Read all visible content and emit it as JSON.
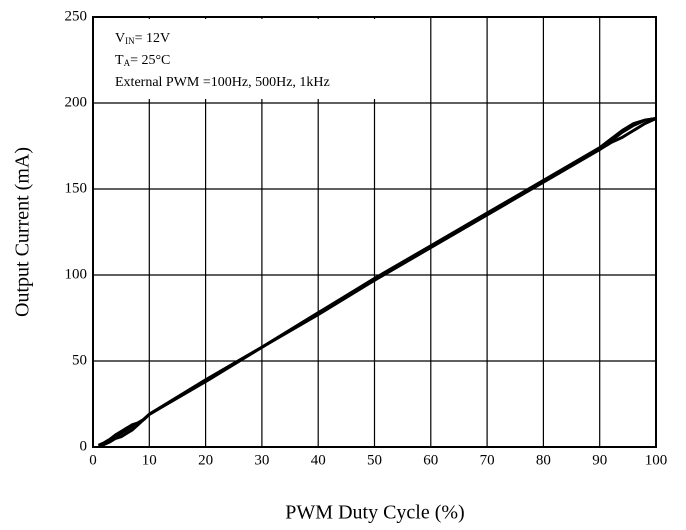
{
  "chart_data": {
    "type": "line",
    "xlabel": "PWM Duty Cycle (%)",
    "ylabel": "Output Current (mA)",
    "annotations": [
      [
        "V",
        "IN",
        "= 12V"
      ],
      [
        "T",
        "A",
        "= 25°C"
      ],
      [
        "External PWM =100Hz, 500Hz, 1kHz"
      ]
    ],
    "x": [
      1,
      2,
      3,
      4,
      5,
      6,
      7,
      8,
      9,
      10,
      20,
      30,
      40,
      50,
      60,
      70,
      80,
      90,
      92,
      94,
      96,
      98,
      100
    ],
    "series": [
      {
        "color": "#000000",
        "values": [
          0.5,
          2,
          4,
          6,
          8,
          10,
          12,
          14,
          16,
          19,
          39,
          58,
          78,
          97,
          116,
          135,
          154,
          173,
          178,
          183,
          187,
          190,
          191
        ]
      },
      {
        "color": "#000000",
        "values": [
          0.5,
          1.5,
          3,
          5,
          6,
          8,
          10,
          13,
          16,
          19,
          38,
          58,
          77,
          97,
          116,
          135,
          154,
          173,
          177,
          180,
          184,
          188,
          191
        ]
      },
      {
        "color": "#000000",
        "values": [
          1,
          2.5,
          4.5,
          7,
          9,
          11,
          13,
          14,
          16,
          19,
          39,
          58,
          78,
          98,
          117,
          136,
          155,
          174,
          179,
          184,
          188,
          190,
          191
        ]
      }
    ],
    "xlim": [
      0,
      100
    ],
    "xticks": [
      0,
      10,
      20,
      30,
      40,
      50,
      60,
      70,
      80,
      90,
      100
    ],
    "ylim": [
      0,
      250
    ],
    "yticks": [
      0,
      50,
      100,
      150,
      200,
      250
    ],
    "grid": true
  }
}
